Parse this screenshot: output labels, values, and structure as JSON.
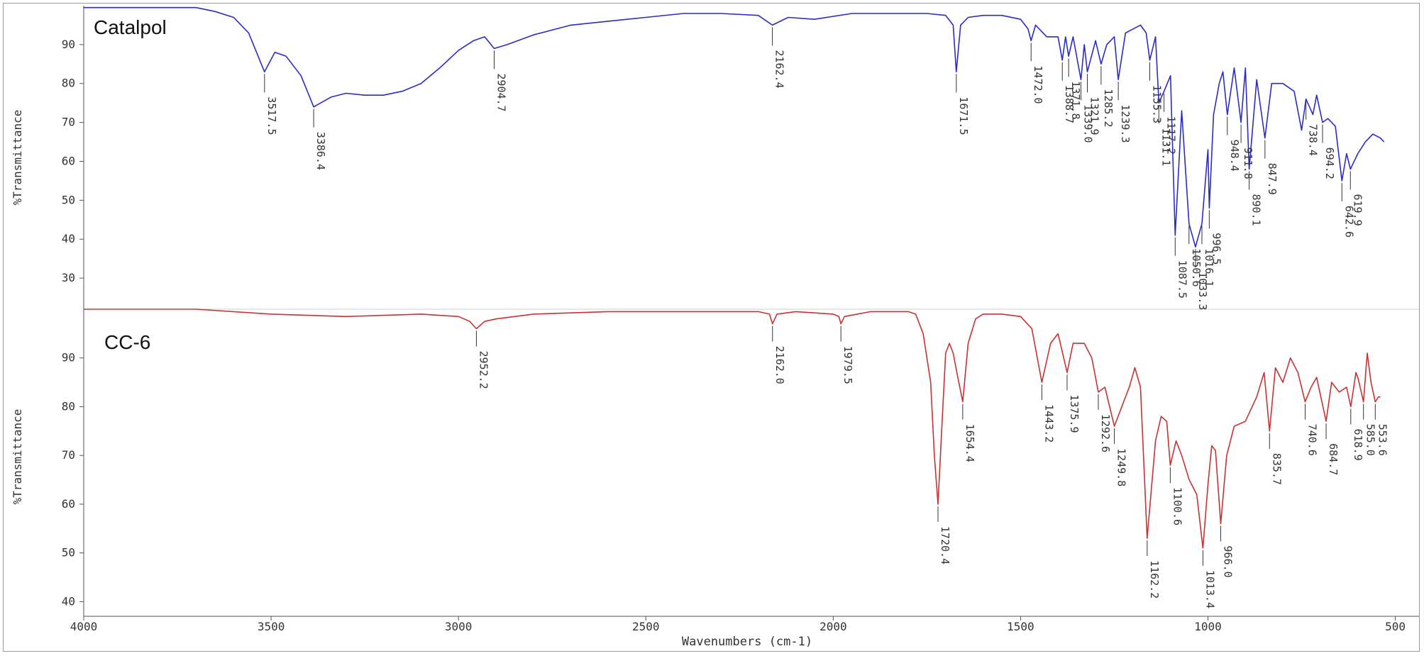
{
  "chart_data": {
    "type": "line",
    "xlabel": "Wavenumbers (cm-1)",
    "xlim": [
      4000,
      450
    ],
    "x_ticks": [
      4000,
      3500,
      3000,
      2500,
      2000,
      1500,
      1000,
      500
    ],
    "x_tick_labels": [
      "4000",
      "3500",
      "3000",
      "2500",
      "2000",
      "1500",
      "1000",
      "500"
    ],
    "panels": [
      {
        "name": "Catalpol",
        "color": "#2b2bc8",
        "ylabel": "%Transmittance",
        "ylim": [
          22,
          100
        ],
        "y_ticks": [
          30,
          40,
          50,
          60,
          70,
          80,
          90
        ],
        "y_tick_labels": [
          "30",
          "40",
          "50",
          "60",
          "70",
          "80",
          "90"
        ],
        "x": [
          4000,
          3700,
          3650,
          3600,
          3560,
          3517.5,
          3490,
          3460,
          3420,
          3386.4,
          3340,
          3300,
          3250,
          3200,
          3150,
          3100,
          3050,
          3000,
          2960,
          2930,
          2904.7,
          2870,
          2800,
          2700,
          2600,
          2500,
          2400,
          2300,
          2200,
          2162.4,
          2120,
          2050,
          1950,
          1850,
          1800,
          1750,
          1700,
          1680,
          1671.5,
          1660,
          1640,
          1600,
          1550,
          1500,
          1480,
          1472,
          1460,
          1430,
          1400,
          1388.7,
          1380,
          1371.8,
          1360,
          1339,
          1330,
          1321.9,
          1300,
          1285.2,
          1270,
          1250,
          1239.3,
          1220,
          1200,
          1180,
          1165,
          1155.3,
          1140,
          1131.1,
          1117.2,
          1100,
          1087.5,
          1070,
          1050.6,
          1033.3,
          1016.1,
          1000,
          996.5,
          985,
          970,
          960,
          948.4,
          930,
          911.8,
          900,
          890.1,
          870,
          847.9,
          830,
          800,
          770,
          750,
          738.4,
          720,
          710,
          694.2,
          680,
          660,
          642.6,
          630,
          619.9,
          600,
          580,
          560,
          540,
          530
        ],
        "y": [
          99.5,
          99.5,
          98.5,
          97,
          93,
          83,
          88,
          87,
          82,
          74,
          76.5,
          77.5,
          77,
          77,
          78,
          80,
          84,
          88.5,
          91,
          92,
          89,
          90,
          92.5,
          95,
          96,
          97,
          98,
          98,
          97.5,
          95,
          97,
          96.5,
          98,
          98,
          98,
          98,
          97.5,
          95,
          83,
          95,
          97,
          97.5,
          97.5,
          96.5,
          94,
          91,
          95,
          92,
          92,
          86,
          92,
          87,
          92,
          81,
          90,
          83,
          91,
          85,
          90,
          92,
          81,
          93,
          94,
          95,
          93,
          86,
          92,
          75,
          78,
          82,
          41,
          73,
          44,
          38,
          44,
          63,
          48,
          72,
          80,
          83,
          72,
          84,
          70,
          84,
          58,
          81,
          66,
          80,
          80,
          78,
          68,
          76,
          72,
          77,
          70,
          71,
          69,
          55,
          62,
          58,
          62,
          65,
          67,
          66,
          65
        ],
        "peaks": [
          {
            "x": 3517.5,
            "label": "3517.5"
          },
          {
            "x": 3386.4,
            "label": "3386.4"
          },
          {
            "x": 2904.7,
            "label": "2904.7"
          },
          {
            "x": 2162.4,
            "label": "2162.4"
          },
          {
            "x": 1671.5,
            "label": "1671.5"
          },
          {
            "x": 1472.0,
            "label": "1472.0"
          },
          {
            "x": 1388.7,
            "label": "1388.7"
          },
          {
            "x": 1371.8,
            "label": "1371.8"
          },
          {
            "x": 1339.0,
            "label": "1339.0"
          },
          {
            "x": 1321.9,
            "label": "1321.9"
          },
          {
            "x": 1285.2,
            "label": "1285.2"
          },
          {
            "x": 1239.3,
            "label": "1239.3"
          },
          {
            "x": 1155.3,
            "label": "1155.3"
          },
          {
            "x": 1131.1,
            "label": "1131.1"
          },
          {
            "x": 1117.2,
            "label": "1117.2"
          },
          {
            "x": 1087.5,
            "label": "1087.5"
          },
          {
            "x": 1050.6,
            "label": "1050.6"
          },
          {
            "x": 1033.3,
            "label": "1033.3"
          },
          {
            "x": 1016.1,
            "label": "1016.1"
          },
          {
            "x": 996.5,
            "label": "996.5"
          },
          {
            "x": 948.4,
            "label": "948.4"
          },
          {
            "x": 911.8,
            "label": "911.8"
          },
          {
            "x": 890.1,
            "label": "890.1"
          },
          {
            "x": 847.9,
            "label": "847.9"
          },
          {
            "x": 738.4,
            "label": "738.4"
          },
          {
            "x": 694.2,
            "label": "694.2"
          },
          {
            "x": 642.6,
            "label": "642.6"
          },
          {
            "x": 619.9,
            "label": "619.9"
          }
        ]
      },
      {
        "name": "CC-6",
        "color": "#c83232",
        "ylabel": "%Transmittance",
        "ylim": [
          37,
          100
        ],
        "y_ticks": [
          40,
          50,
          60,
          70,
          80,
          90
        ],
        "y_tick_labels": [
          "40",
          "50",
          "60",
          "70",
          "80",
          "90"
        ],
        "x": [
          4000,
          3700,
          3500,
          3300,
          3100,
          3000,
          2970,
          2952.2,
          2930,
          2900,
          2800,
          2600,
          2400,
          2200,
          2170,
          2162,
          2150,
          2100,
          2000,
          1985,
          1979.5,
          1970,
          1900,
          1800,
          1780,
          1760,
          1740,
          1730,
          1720.4,
          1710,
          1700,
          1690,
          1680,
          1670,
          1654.4,
          1640,
          1620,
          1600,
          1550,
          1500,
          1470,
          1443.2,
          1420,
          1400,
          1375.9,
          1360,
          1330,
          1310,
          1292.6,
          1275,
          1249.8,
          1230,
          1210,
          1195,
          1180,
          1162.2,
          1140,
          1125,
          1110,
          1100.6,
          1085,
          1070,
          1050,
          1030,
          1013.4,
          1000,
          990,
          980,
          966,
          950,
          930,
          900,
          870,
          850,
          835.7,
          820,
          800,
          780,
          760,
          740.6,
          725,
          710,
          684.7,
          670,
          650,
          630,
          618.9,
          605,
          600,
          585.0,
          575,
          565,
          553.6,
          545,
          540
        ],
        "y": [
          100,
          100,
          99,
          98.5,
          99,
          98.5,
          97.5,
          96,
          97.5,
          98,
          99,
          99.5,
          99.5,
          99.5,
          99,
          97,
          99,
          99.5,
          99,
          98.5,
          97,
          98.5,
          99.5,
          99.5,
          99,
          95,
          85,
          70,
          60,
          76,
          91,
          93,
          91,
          87,
          81,
          93,
          98,
          99,
          99,
          98.5,
          96,
          85,
          93,
          95,
          87,
          93,
          93,
          90,
          83,
          84,
          76,
          80,
          84,
          88,
          84,
          53,
          73,
          78,
          77,
          68,
          73,
          70,
          65,
          62,
          51,
          64,
          72,
          71,
          56,
          70,
          76,
          77,
          82,
          87,
          75,
          88,
          85,
          90,
          87,
          81,
          84,
          86,
          77,
          85,
          83,
          84,
          80,
          87,
          86,
          81,
          91,
          85,
          81,
          82,
          82
        ],
        "peaks": [
          {
            "x": 2952.2,
            "label": "2952.2"
          },
          {
            "x": 2162.0,
            "label": "2162.0"
          },
          {
            "x": 1979.5,
            "label": "1979.5"
          },
          {
            "x": 1720.4,
            "label": "1720.4"
          },
          {
            "x": 1654.4,
            "label": "1654.4"
          },
          {
            "x": 1443.2,
            "label": "1443.2"
          },
          {
            "x": 1375.9,
            "label": "1375.9"
          },
          {
            "x": 1292.6,
            "label": "1292.6"
          },
          {
            "x": 1249.8,
            "label": "1249.8"
          },
          {
            "x": 1162.2,
            "label": "1162.2"
          },
          {
            "x": 1100.6,
            "label": "1100.6"
          },
          {
            "x": 1013.4,
            "label": "1013.4"
          },
          {
            "x": 966.0,
            "label": "966.0"
          },
          {
            "x": 835.7,
            "label": "835.7"
          },
          {
            "x": 740.6,
            "label": "740.6"
          },
          {
            "x": 684.7,
            "label": "684.7"
          },
          {
            "x": 618.9,
            "label": "618.9"
          },
          {
            "x": 585.0,
            "label": "585.0"
          },
          {
            "x": 553.6,
            "label": "553.6"
          }
        ]
      }
    ]
  }
}
